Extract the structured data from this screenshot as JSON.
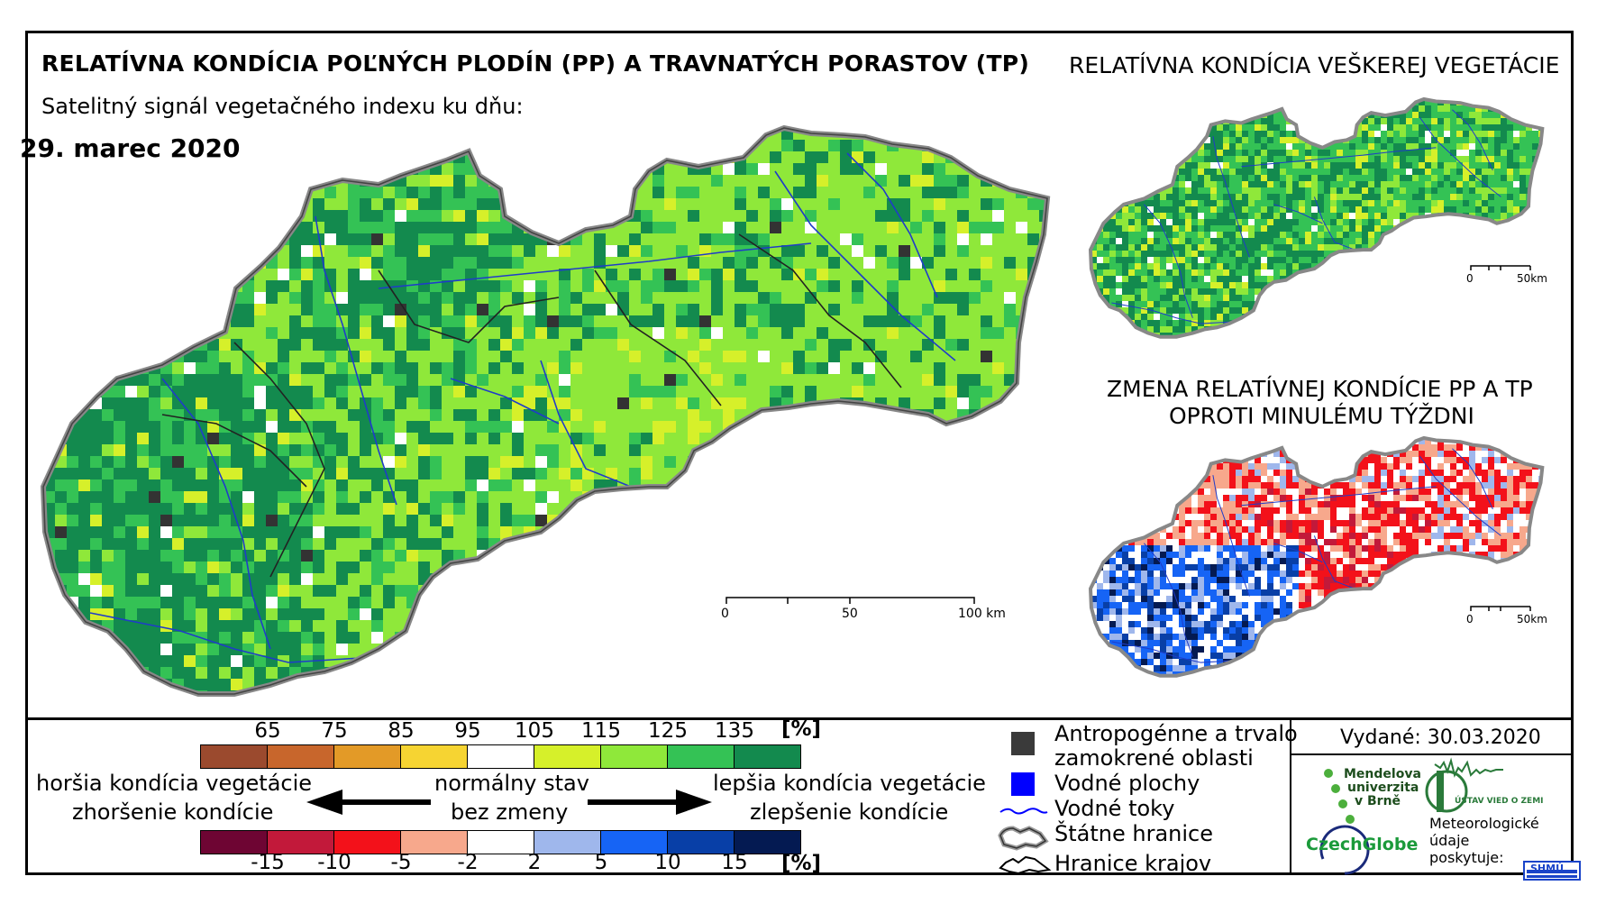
{
  "title": "RELATÍVNA KONDÍCIA POĽNÝCH PLODÍN (PP) A TRAVNATÝCH PORASTOV (TP)",
  "subtitle": "Satelitný signál vegetačného indexu ku dňu:",
  "date": "29. marec 2020",
  "right_top_title": "RELATÍVNA KONDÍCIA VEŠKEREJ VEGETÁCIE",
  "right_bottom_title_line1": "ZMENA RELATÍVNEJ KONDÍCIE PP A TP",
  "right_bottom_title_line2": "OPROTI MINULÉMU TÝŽDNI",
  "scale_main": {
    "t0": "0",
    "t1": "50",
    "t2": "100 km"
  },
  "scale_small": {
    "t0": "0",
    "t1": "50km"
  },
  "colors": {
    "condition": [
      "#9b4a2e",
      "#c8662c",
      "#e39a27",
      "#f6d432",
      "#ffffff",
      "#d6f02a",
      "#8fe83a",
      "#34c255",
      "#138a4e"
    ],
    "change": [
      "#6e0533",
      "#c2193a",
      "#f3111a",
      "#f7a88c",
      "#ffffff",
      "#9fb7ec",
      "#1664f5",
      "#083fa7",
      "#041a52"
    ]
  },
  "legend": {
    "condition_ticks": [
      "65",
      "75",
      "85",
      "95",
      "105",
      "115",
      "125",
      "135"
    ],
    "condition_unit": "[%]",
    "change_ticks": [
      "-15",
      "-10",
      "-5",
      "-2",
      "2",
      "5",
      "10",
      "15"
    ],
    "change_unit": "[%]",
    "worse_line1": "horšia kondícia vegetácie",
    "worse_line2": "zhoršenie kondície",
    "normal_line1": "normálny stav",
    "normal_line2": "bez zmeny",
    "better_line1": "lepšia kondícia vegetácie",
    "better_line2": "zlepšenie kondície",
    "symbols": [
      {
        "icon": "anthropogenic-square-icon",
        "label": "Antropogénne a trvalo",
        "label2": "zamokrené oblasti"
      },
      {
        "icon": "water-body-square-icon",
        "label": "Vodné plochy"
      },
      {
        "icon": "river-line-icon",
        "label": "Vodné toky"
      },
      {
        "icon": "state-border-icon",
        "label": "Štátne hranice"
      },
      {
        "icon": "region-border-icon",
        "label": "Hranice krajov"
      }
    ]
  },
  "issued": "Vydané: 30.03.2020",
  "logos": {
    "mendel": [
      "Mendelova",
      "univerzita",
      "v Brně"
    ],
    "ustav": "ÚSTAV VIED O ZEMI",
    "czechglobe": "CzechGlobe",
    "meteo": [
      "Meteorologické",
      "údaje",
      "poskytuje:"
    ],
    "shmu": "SHMÚ"
  }
}
